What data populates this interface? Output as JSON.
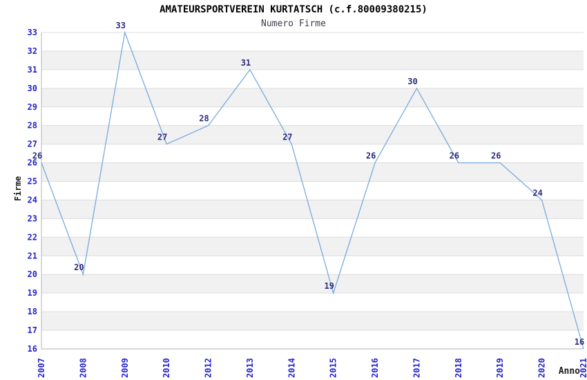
{
  "chart_data": {
    "type": "line",
    "title": "AMATEURSPORTVEREIN KURTATSCH (c.f.80009380215)",
    "subtitle": "Numero Firme",
    "xlabel": "Anno",
    "ylabel": "Firme",
    "categories": [
      "2007",
      "2008",
      "2009",
      "2010",
      "2012",
      "2013",
      "2014",
      "2015",
      "2016",
      "2017",
      "2018",
      "2019",
      "2020",
      "2021"
    ],
    "values": [
      26,
      20,
      33,
      27,
      28,
      31,
      27,
      19,
      26,
      30,
      26,
      26,
      24,
      16
    ],
    "ylim": [
      16,
      33
    ],
    "y_ticks": [
      16,
      17,
      18,
      19,
      20,
      21,
      22,
      23,
      24,
      25,
      26,
      27,
      28,
      29,
      30,
      31,
      32,
      33
    ],
    "x_tick_rotation_deg": -90,
    "grid": "horizontal gridlines with alternating shaded bands",
    "legend": "none",
    "data_labels_shown": true,
    "colors": {
      "line": "#77aadd",
      "tick_labels": "#2323cc",
      "data_labels": "#2b2b80",
      "band_shaded": "#f1f1f1",
      "band_plain": "#ffffff",
      "gridline": "#dcdcdc",
      "axis_border": "#c0c0c0",
      "title": "#000000",
      "subtitle": "#3c3c50",
      "axis_titles": "#1a1a1a"
    }
  }
}
